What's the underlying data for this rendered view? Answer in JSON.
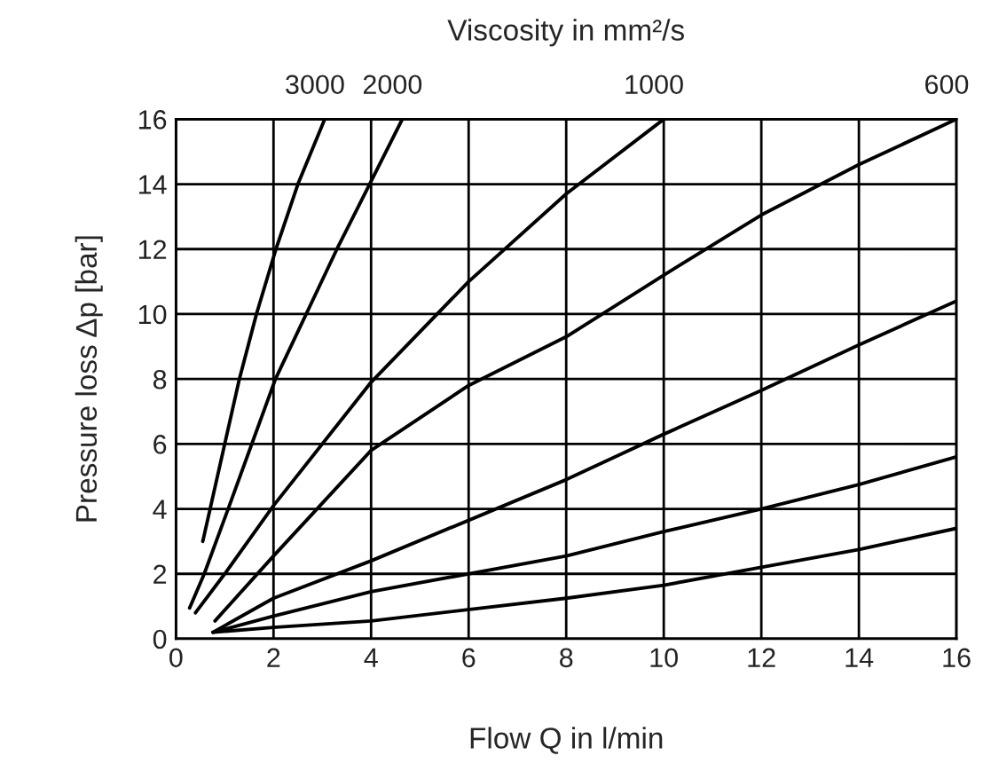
{
  "chart_data": {
    "type": "line",
    "xlabel": "Flow Q in l/min",
    "ylabel": "Pressure loss Δp [bar]",
    "title": "Viscosity in mm²/s",
    "xlim": [
      0,
      16
    ],
    "xticks": [
      0,
      2,
      4,
      6,
      8,
      10,
      12,
      14,
      16
    ],
    "ylim": [
      0,
      16
    ],
    "yticks": [
      0,
      2,
      4,
      6,
      8,
      10,
      12,
      14,
      16
    ],
    "grid": true,
    "marker": "none",
    "line_style": "solid",
    "series": [
      {
        "name": "3000",
        "color": "#000000",
        "x": [
          0.55,
          0.7,
          1.0,
          1.3,
          1.65,
          2.05,
          2.5,
          3.05
        ],
        "values": [
          3,
          4,
          6,
          8,
          10,
          12,
          14,
          16
        ]
      },
      {
        "name": "2000",
        "color": "#000000",
        "x": [
          0.28,
          0.58,
          1.07,
          2.04,
          3.3,
          3.97,
          4.64
        ],
        "values": [
          0.95,
          2,
          4,
          8,
          12,
          14,
          16
        ]
      },
      {
        "name": "1000",
        "color": "#000000",
        "x": [
          0.4,
          1,
          2,
          4,
          6,
          8,
          10
        ],
        "values": [
          0.8,
          2,
          4.1,
          7.9,
          11,
          13.7,
          16
        ]
      },
      {
        "name": "600",
        "color": "#000000",
        "x": [
          0.8,
          2,
          4,
          6,
          8,
          10,
          12,
          14,
          16
        ],
        "values": [
          0.55,
          2.55,
          5.8,
          7.8,
          9.3,
          11.2,
          13.05,
          14.6,
          16
        ]
      },
      {
        "color": "#000000",
        "x": [
          0.76,
          2,
          4,
          8,
          10,
          12,
          14,
          16
        ],
        "values": [
          0.2,
          1.25,
          2.4,
          4.9,
          6.3,
          7.65,
          9.05,
          10.4
        ]
      },
      {
        "color": "#000000",
        "x": [
          0.76,
          2,
          4,
          8,
          10,
          12,
          14,
          16
        ],
        "values": [
          0.2,
          0.7,
          1.45,
          2.55,
          3.3,
          4.0,
          4.75,
          5.6
        ]
      },
      {
        "color": "#000000",
        "x": [
          0.76,
          2,
          4,
          8,
          10,
          12,
          14,
          16
        ],
        "values": [
          0.2,
          0.35,
          0.55,
          1.25,
          1.65,
          2.2,
          2.75,
          3.4
        ]
      }
    ]
  }
}
